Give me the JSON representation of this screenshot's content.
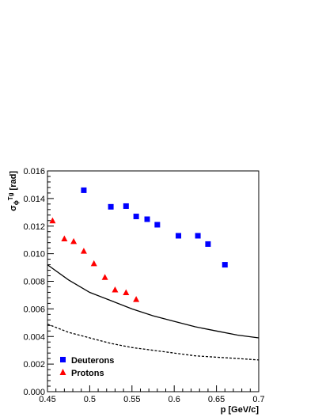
{
  "chart_data": {
    "type": "scatter",
    "title": "",
    "xlabel": "p [GeV/c]",
    "ylabel": "σ",
    "ylabel_sub": "ϕ",
    "ylabel_mid": "Tg",
    "ylabel_unit": " [rad]",
    "xlim": [
      0.45,
      0.7
    ],
    "ylim": [
      0.0,
      0.016
    ],
    "x_ticks": [
      0.45,
      0.5,
      0.55,
      0.6,
      0.65,
      0.7
    ],
    "x_tick_labels": [
      "0.45",
      "0.5",
      "0.55",
      "0.6",
      "0.65",
      "0.7"
    ],
    "y_ticks": [
      0,
      0.002,
      0.004,
      0.006,
      0.008,
      0.01,
      0.012,
      0.014,
      0.016
    ],
    "y_tick_labels": [
      "0.000",
      "0.002",
      "0.004",
      "0.006",
      "0.008",
      "0.010",
      "0.012",
      "0.014",
      "0.016"
    ],
    "grid": false,
    "legend_position": "bottom-left",
    "series": [
      {
        "name": "Deuterons",
        "marker": "square",
        "color": "#0000ff",
        "x": [
          0.493,
          0.525,
          0.543,
          0.555,
          0.568,
          0.58,
          0.605,
          0.628,
          0.64,
          0.66
        ],
        "y": [
          0.0146,
          0.0134,
          0.01345,
          0.0127,
          0.0125,
          0.0121,
          0.0113,
          0.0113,
          0.0107,
          0.0092
        ]
      },
      {
        "name": "Protons",
        "marker": "triangle",
        "color": "#ff0000",
        "x": [
          0.456,
          0.47,
          0.481,
          0.493,
          0.505,
          0.518,
          0.53,
          0.543,
          0.555
        ],
        "y": [
          0.0124,
          0.0111,
          0.0109,
          0.0102,
          0.0093,
          0.0083,
          0.0074,
          0.0072,
          0.0067
        ]
      }
    ],
    "curves": [
      {
        "style": "solid",
        "color": "#000000",
        "x": [
          0.45,
          0.475,
          0.5,
          0.525,
          0.55,
          0.575,
          0.6,
          0.625,
          0.65,
          0.675,
          0.7
        ],
        "y": [
          0.0092,
          0.0081,
          0.0072,
          0.0066,
          0.006,
          0.0055,
          0.0051,
          0.0047,
          0.0044,
          0.0041,
          0.0039
        ]
      },
      {
        "style": "dashed",
        "color": "#000000",
        "x": [
          0.45,
          0.475,
          0.5,
          0.525,
          0.55,
          0.575,
          0.6,
          0.625,
          0.65,
          0.675,
          0.7
        ],
        "y": [
          0.0049,
          0.0043,
          0.0039,
          0.0035,
          0.0032,
          0.003,
          0.0028,
          0.0026,
          0.0025,
          0.0024,
          0.0023
        ]
      }
    ]
  }
}
